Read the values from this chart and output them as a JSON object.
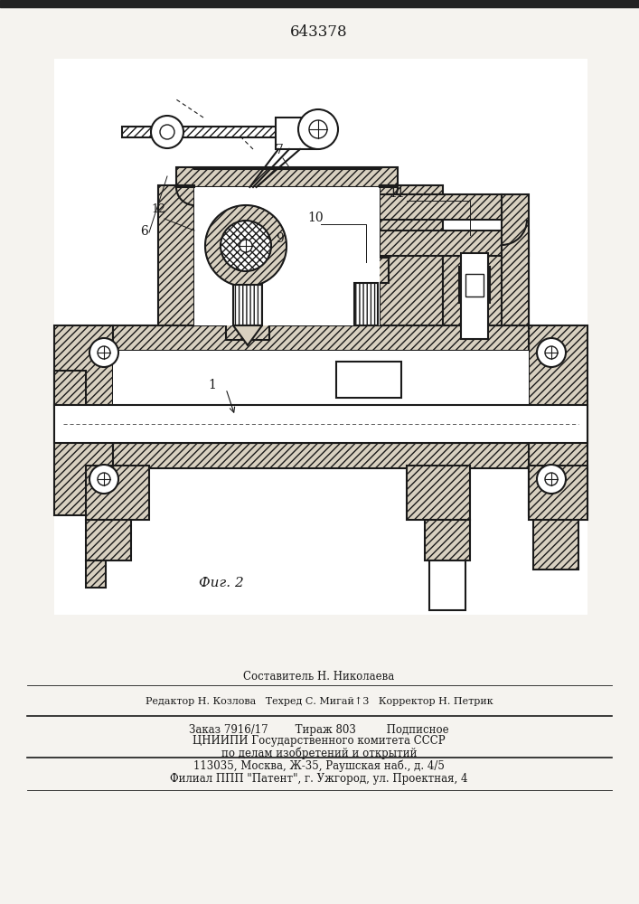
{
  "patent_number": "643378",
  "figure_label": "Фиг. 2",
  "bg_color": "#f5f3ef",
  "line_color": "#1a1a1a",
  "hatch_color": "#1a1a1a",
  "header_line": "Составитель Н. Николаева",
  "editor_line": "Редактор Н. Козлова   Техред С. Мигай↑3   Корректор Н. Петрик",
  "order_line": "Заказ 7916/17        Тираж 803         Подписное",
  "org_line1": "ЦНИИПИ Государственного комитета СССР",
  "org_line2": "по делам изобретений и открытий",
  "org_line3": "113035, Москва, Ж-35, Раушская наб., д. 4/5",
  "filial_line": "Филиал ППП \"Патент\", г. Ужгород, ул. Проектная, 4",
  "top_strip_color": "#222222"
}
